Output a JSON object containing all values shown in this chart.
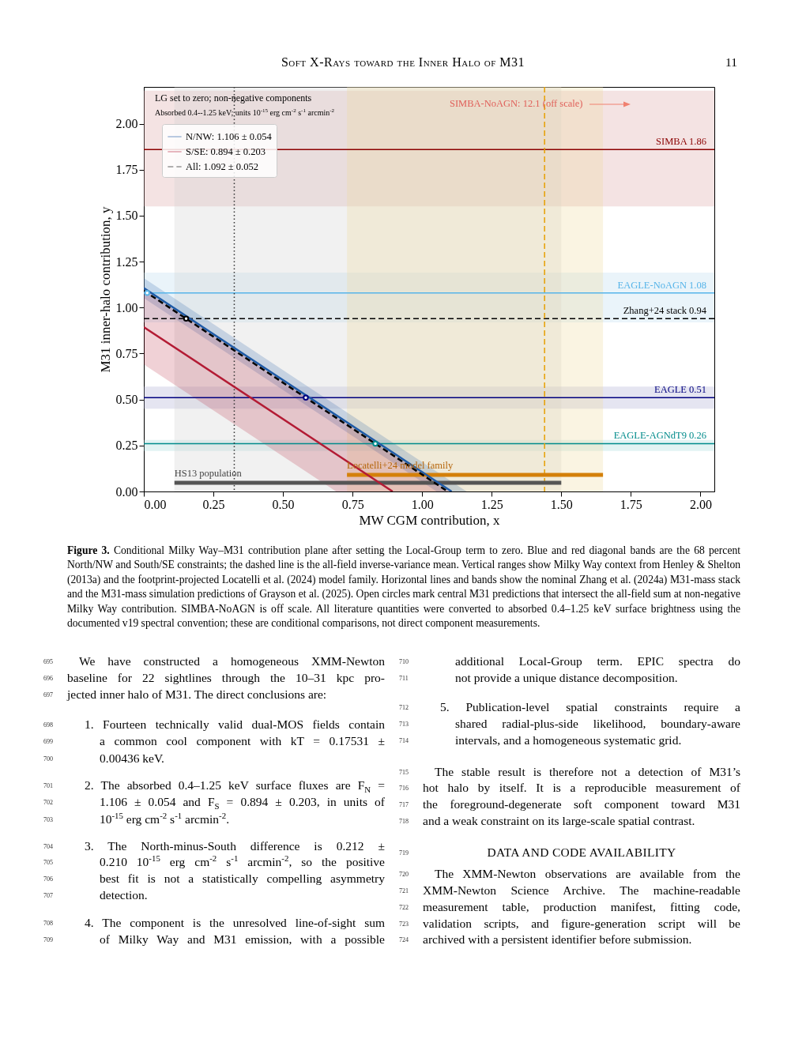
{
  "chart_data": {
    "type": "line",
    "xlabel": "MW CGM contribution, x",
    "ylabel": "M31 inner-halo contribution, y",
    "xlim": [
      0,
      2.05
    ],
    "ylim": [
      0,
      2.2
    ],
    "xticks": [
      {
        "value": 0,
        "label": "0.00"
      },
      {
        "value": 0.25,
        "label": "0.25"
      },
      {
        "value": 0.5,
        "label": "0.50"
      },
      {
        "value": 0.75,
        "label": "0.75"
      },
      {
        "value": 1,
        "label": "1.00"
      },
      {
        "value": 1.25,
        "label": "1.25"
      },
      {
        "value": 1.5,
        "label": "1.50"
      },
      {
        "value": 1.75,
        "label": "1.75"
      },
      {
        "value": 2,
        "label": "2.00"
      }
    ],
    "yticks": [
      {
        "value": 0,
        "label": "0.00"
      },
      {
        "value": 0.25,
        "label": "0.25"
      },
      {
        "value": 0.5,
        "label": "0.50"
      },
      {
        "value": 0.75,
        "label": "0.75"
      },
      {
        "value": 1,
        "label": "1.00"
      },
      {
        "value": 1.25,
        "label": "1.25"
      },
      {
        "value": 1.5,
        "label": "1.50"
      },
      {
        "value": 1.75,
        "label": "1.75"
      },
      {
        "value": 2,
        "label": "2.00"
      }
    ],
    "legend": "top left",
    "series": [
      {
        "name": "N/NW: 1.106 ± 0.054",
        "color": "#1f5aa6",
        "x": [
          0,
          1.052,
          1.106,
          1.16
        ],
        "values": [
          1.106,
          0.054,
          0,
          null
        ],
        "lower": [
          1.052,
          0,
          0,
          0
        ],
        "upper": [
          1.16,
          0.108,
          0.054,
          0
        ]
      },
      {
        "name": "S/SE: 0.894 ± 0.203",
        "color": "#b31b34",
        "x": [
          0,
          0.691,
          0.894,
          1.097
        ],
        "values": [
          0.894,
          0.203,
          0,
          null
        ],
        "lower": [
          0.691,
          0,
          0,
          0
        ],
        "upper": [
          1.097,
          0.406,
          0.203,
          0
        ]
      },
      {
        "name": "All: 1.092 ± 0.052",
        "color": "#000000",
        "line_style": "dashed",
        "x": [
          0,
          1.092
        ],
        "values": [
          1.092,
          0
        ]
      },
      {
        "type": "scatter",
        "marker": "circle",
        "x": [
          0.012,
          0.152,
          0.582,
          0.832
        ],
        "values": [
          1.08,
          0.94,
          0.51,
          0.26
        ],
        "colors": [
          "#5ab4e5",
          "#000000",
          "#00007f",
          "#008b8b"
        ]
      },
      {
        "color": "#555555",
        "x": [
          0.11,
          1.5
        ],
        "values": [
          0.047,
          0.047
        ]
      },
      {
        "color": "#d4800a",
        "x": [
          0.73,
          1.65
        ],
        "values": [
          0.09,
          0.09
        ]
      }
    ],
    "ref_lines": [
      {
        "axis": "y",
        "value": 1.86,
        "label": "SIMBA 1.86",
        "color": "#8b0000",
        "line_style": "solid"
      },
      {
        "axis": "y",
        "value": 1.08,
        "label": "EAGLE-NoAGN 1.08",
        "color": "#56b4e9",
        "line_style": "solid"
      },
      {
        "axis": "y",
        "value": 0.94,
        "label": "Zhang+24 stack 0.94",
        "color": "#000000",
        "line_style": "dashed"
      },
      {
        "axis": "y",
        "value": 0.51,
        "label": "EAGLE 0.51",
        "color": "#00007f",
        "line_style": "solid"
      },
      {
        "axis": "y",
        "value": 0.26,
        "label": "EAGLE-AGNdT9 0.26",
        "color": "#008b8b",
        "line_style": "solid"
      },
      {
        "axis": "x",
        "value": 0.325,
        "label": null,
        "color": "#333333",
        "line_style": "dotted"
      },
      {
        "axis": "x",
        "value": 1.44,
        "label": null,
        "color": "#e69f00",
        "line_style": "dashed"
      }
    ],
    "bands": [
      {
        "axis": "x",
        "from": 0.11,
        "to": 1.5,
        "label": null,
        "color": "#d0d0d0"
      },
      {
        "axis": "x",
        "from": 0.73,
        "to": 1.65,
        "label": null,
        "color": "#f0d9a0"
      },
      {
        "axis": "y",
        "from": 1.55,
        "to": 2.18,
        "label": null,
        "color": "#d9a3a3"
      },
      {
        "axis": "y",
        "from": 0.92,
        "to": 1.19,
        "label": null,
        "color": "#b8dcef"
      },
      {
        "axis": "y",
        "from": 0.45,
        "to": 0.57,
        "label": null,
        "color": "#a8a8d0"
      },
      {
        "axis": "y",
        "from": 0.22,
        "to": 0.28,
        "label": null,
        "color": "#a0d8d8"
      }
    ],
    "annotations": [
      "LG set to zero; non-negative components",
      "Absorbed 0.4--1.25 keV; units 10$^{-15}$ erg cm$^{-2}$ s$^{-1}$ arcmin$^{-2}$",
      "SIMBA-NoAGN: 12.1 (off scale)",
      {
        "text": "HS13 population",
        "x": 0.11,
        "y": 0.047
      },
      {
        "text": "Locatelli+24 model family",
        "x": 0.73,
        "y": 0.09
      },
      "Soft X-Rays toward the Inner Halo of M31",
      "11",
      "Figure 3. Conditional Milky Way–M31 contribution plane after setting the Local-Group term to zero. Blue and red diagonal bands are the 68 percent North/NW and South/SE constraints; the dashed line is the all-field inverse-variance mean. Vertical ranges show Milky Way context from Henley & Shelton (2013a) and the footprint-projected Locatelli et al. (2024) model family. Horizontal lines and bands show the nominal Zhang et al. (2024a) M31-mass stack and the M31-mass simulation predictions of Grayson et al. (2025). Open circles mark central M31 predictions that intersect the all-field sum at non-negative Milky Way contribution. SIMBA-NoAGN is off scale. All literature quantities were converted to absorbed 0.4–1.25 keV surface brightness using the documented v19 spectral convention; these are conditional comparisons, not direct component measurements.",
      "695 We have constructed a homogeneous XMM-Newton",
      "696 baseline for 22 sightlines through the 10–31 kpc pro-",
      "697 jected inner halo of M31. The direct conclusions are:",
      "698 1. Fourteen technically valid dual-MOS fields contain",
      "699 a common cool component with kT = 0.17531 ±",
      "700 0.00436 keV.",
      "701 2. The absorbed 0.4–1.25 keV surface fluxes are F$_{N}$ =",
      "702 1.106 ± 0.054 and F$_{S}$ = 0.894 ± 0.203, in units of",
      "703 10$^{-15}$ erg cm$^{-2}$ s$^{-1}$ arcmin$^{-2}$.",
      "704 3. The North-minus-South difference is 0.212 ±",
      "705 0.210 10$^{-15}$ erg cm$^{-2}$ s$^{-1}$ arcmin$^{-2}$, so the positive",
      "706 best fit is not a statistically compelling asymmetry",
      "707 detection.",
      "708 4. The component is the unresolved line-of-sight sum",
      "709 of Milky Way and M31 emission, with a possible",
      "710 additional Local-Group term. EPIC spectra do",
      "711 not provide a unique distance decomposition.",
      "712 5. Publication-level spatial constraints require a",
      "713 shared radial-plus-side likelihood, boundary-aware",
      "714 intervals, and a homogeneous systematic grid.",
      "715 The stable result is therefore not a detection of M31’s",
      "716 hot halo by itself. It is a reproducible measurement of",
      "717 the foreground-degenerate soft component toward M31",
      "718 and a weak constraint on its large-scale spatial contrast.",
      "719 DATA AND CODE AVAILABILITY",
      "720 The XMM-Newton observations are available from the",
      "721 XMM-Newton Science Archive. The machine-readable",
      "722 measurement table, production manifest, fitting code,",
      "723 validation scripts, and figure-generation script will be",
      "724 archived with a persistent identifier before submission."
    ]
  }
}
